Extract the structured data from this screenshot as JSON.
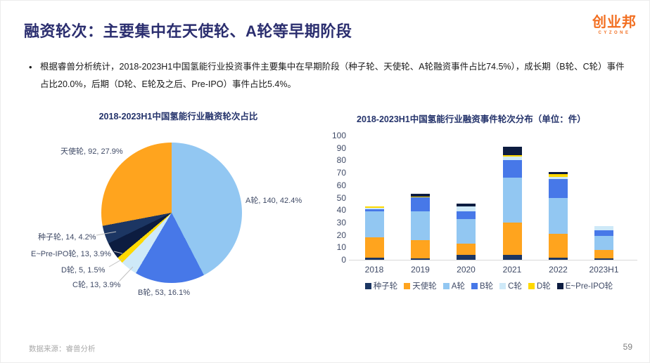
{
  "slide": {
    "title": "融资轮次：主要集中在天使轮、A轮等早期阶段",
    "logo": {
      "brand": "创业邦",
      "sub": "CYZONE"
    },
    "bullet_marker": "•",
    "bullet_text": "根据睿兽分析统计，2018-2023H1中国氢能行业投资事件主要集中在早期阶段（种子轮、天使轮、A轮融资事件占比74.5%），成长期（B轮、C轮）事件占比20.0%，后期（D轮、E轮及之后、Pre-IPO）事件占比5.4%。",
    "footer": {
      "source": "数据来源：睿兽分析",
      "page": "59"
    }
  },
  "colors": {
    "title_navy": "#2B2E6F",
    "chart_title_navy": "#24336B",
    "axis_text": "#3F4A66",
    "brand_orange": "#F26F21",
    "seed": "#1C3663",
    "angel": "#FFA41E",
    "round_a": "#92C7F2",
    "round_b": "#4778E8",
    "round_c": "#CEE9F8",
    "round_d": "#FFD900",
    "pre_ipo": "#0C1C40"
  },
  "chart_data": [
    {
      "type": "pie",
      "title": "2018-2023H1中国氢能行业融资轮次占比",
      "start_angle_deg": 0,
      "direction": "clockwise",
      "slices": [
        {
          "name": "A轮",
          "value": 140,
          "pct": 42.4,
          "color": "#92C7F2",
          "display": "A轮, 140, 42.4%"
        },
        {
          "name": "B轮",
          "value": 53,
          "pct": 16.1,
          "color": "#4778E8",
          "display": "B轮, 53, 16.1%"
        },
        {
          "name": "C轮",
          "value": 13,
          "pct": 3.9,
          "color": "#CEE9F8",
          "display": "C轮, 13, 3.9%"
        },
        {
          "name": "D轮",
          "value": 5,
          "pct": 1.5,
          "color": "#FFD900",
          "display": "D轮, 5, 1.5%"
        },
        {
          "name": "E~Pre-IPO轮",
          "value": 13,
          "pct": 3.9,
          "color": "#0C1C40",
          "display": "E~Pre-IPO轮, 13, 3.9%"
        },
        {
          "name": "种子轮",
          "value": 14,
          "pct": 4.2,
          "color": "#1C3663",
          "display": "种子轮, 14, 4.2%"
        },
        {
          "name": "天使轮",
          "value": 92,
          "pct": 27.9,
          "color": "#FFA41E",
          "display": "天使轮, 92, 27.9%"
        }
      ]
    },
    {
      "type": "bar",
      "stacked": true,
      "title": "2018-2023H1中国氢能行业融资事件轮次分布（单位：件）",
      "categories": [
        "2018",
        "2019",
        "2020",
        "2021",
        "2022",
        "2023H1"
      ],
      "series": [
        {
          "name": "种子轮",
          "color": "#1C3663",
          "values": [
            2,
            1,
            4,
            4,
            2,
            1
          ]
        },
        {
          "name": "天使轮",
          "color": "#FFA41E",
          "values": [
            16,
            15,
            9,
            26,
            19,
            7
          ]
        },
        {
          "name": "A轮",
          "color": "#92C7F2",
          "values": [
            21,
            23,
            20,
            36,
            29,
            11
          ]
        },
        {
          "name": "B轮",
          "color": "#4778E8",
          "values": [
            2,
            11,
            6,
            14,
            15,
            5
          ]
        },
        {
          "name": "C轮",
          "color": "#CEE9F8",
          "values": [
            1,
            0,
            4,
            3,
            2,
            3
          ]
        },
        {
          "name": "D轮",
          "color": "#FFD900",
          "values": [
            1,
            1,
            0,
            1,
            2,
            0
          ]
        },
        {
          "name": "E~Pre-IPO轮",
          "color": "#0C1C40",
          "values": [
            0,
            2,
            2,
            7,
            2,
            0
          ]
        }
      ],
      "totals": [
        43,
        53,
        45,
        91,
        71,
        27
      ],
      "ylim": [
        0,
        100
      ],
      "ytick_step": 10,
      "grid": false,
      "legend_position": "bottom"
    }
  ]
}
